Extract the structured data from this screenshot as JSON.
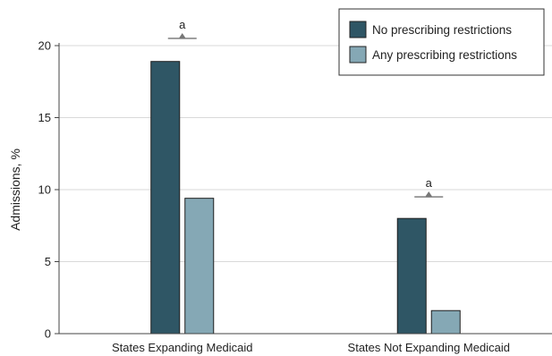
{
  "chart_data": {
    "type": "bar",
    "categories": [
      "States Expanding Medicaid",
      "States Not Expanding Medicaid"
    ],
    "series": [
      {
        "name": "No prescribing restrictions",
        "color": "#2f5665",
        "values": [
          18.9,
          8.0
        ]
      },
      {
        "name": "Any prescribing restrictions",
        "color": "#85a8b5",
        "values": [
          9.4,
          1.6
        ]
      }
    ],
    "ylabel": "Admissions, %",
    "xlabel": "",
    "ylim": [
      0,
      20
    ],
    "yticks": [
      0,
      5,
      10,
      15,
      20
    ],
    "grid": true,
    "legend_position": "top-right",
    "annotations": [
      {
        "category": "States Expanding Medicaid",
        "text": "a",
        "y": 20.5
      },
      {
        "category": "States Not Expanding Medicaid",
        "text": "a",
        "y": 9.5
      }
    ]
  }
}
